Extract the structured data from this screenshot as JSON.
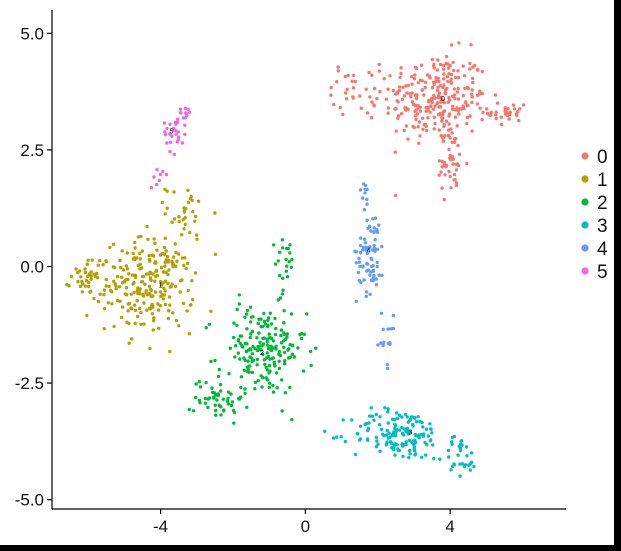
{
  "chart_data": {
    "type": "scatter",
    "title": "",
    "xlabel": "",
    "ylabel": "",
    "xlim": [
      -7.0,
      7.2
    ],
    "ylim": [
      -5.2,
      5.5
    ],
    "xticks": [
      -4,
      0,
      4
    ],
    "xtick_labels": [
      "-4",
      "0",
      "4"
    ],
    "yticks": [
      5.0,
      2.5,
      0.0,
      -2.5,
      -5.0
    ],
    "ytick_labels": [
      "5.0",
      "2.5",
      "0.0",
      "-2.5",
      "-5.0"
    ],
    "grid": false,
    "legend_position": "right",
    "series": [
      {
        "name": "0",
        "color": "#F8766D",
        "center": [
          3.6,
          3.6
        ],
        "label_pos": [
          3.8,
          3.55
        ],
        "label": "0",
        "blobs": [
          [
            3.6,
            3.6,
            1.3,
            0.9,
            260
          ],
          [
            5.6,
            3.3,
            0.5,
            0.3,
            30
          ],
          [
            4.0,
            2.2,
            0.4,
            0.6,
            40
          ],
          [
            1.4,
            3.8,
            0.6,
            0.5,
            30
          ]
        ]
      },
      {
        "name": "1",
        "color": "#B79F00",
        "center": [
          -4.5,
          -0.5
        ],
        "label_pos": [
          -4.0,
          -0.45
        ],
        "label": "1",
        "blobs": [
          [
            -4.3,
            -0.4,
            1.1,
            0.9,
            230
          ],
          [
            -5.9,
            -0.2,
            0.5,
            0.4,
            45
          ],
          [
            -3.3,
            1.2,
            0.5,
            0.5,
            30
          ]
        ]
      },
      {
        "name": "2",
        "color": "#00BA38",
        "center": [
          -1.4,
          -2.2
        ],
        "label_pos": [
          -1.2,
          -1.9
        ],
        "label": "2",
        "blobs": [
          [
            -1.2,
            -1.8,
            1.1,
            0.9,
            190
          ],
          [
            -2.4,
            -2.8,
            0.6,
            0.5,
            50
          ],
          [
            -0.5,
            0.1,
            0.3,
            0.5,
            20
          ]
        ]
      },
      {
        "name": "3",
        "color": "#00BFC4",
        "center": [
          2.5,
          -3.7
        ],
        "label_pos": [
          2.9,
          -3.6
        ],
        "label": "3",
        "blobs": [
          [
            2.6,
            -3.6,
            1.2,
            0.5,
            150
          ],
          [
            4.3,
            -4.1,
            0.4,
            0.4,
            30
          ]
        ]
      },
      {
        "name": "4",
        "color": "#619CFF",
        "center": [
          1.8,
          0.0
        ],
        "label_pos": [
          1.75,
          0.3
        ],
        "label": "4",
        "blobs": [
          [
            1.8,
            0.3,
            0.35,
            0.8,
            70
          ],
          [
            2.2,
            -1.6,
            0.3,
            0.5,
            15
          ],
          [
            1.6,
            1.6,
            0.2,
            0.3,
            10
          ]
        ]
      },
      {
        "name": "5",
        "color": "#F564E3",
        "center": [
          -3.6,
          2.8
        ],
        "label_pos": [
          -3.7,
          2.85
        ],
        "label": "5",
        "blobs": [
          [
            -3.6,
            2.9,
            0.3,
            0.4,
            30
          ],
          [
            -3.3,
            3.3,
            0.15,
            0.1,
            10
          ],
          [
            -4.1,
            1.9,
            0.15,
            0.3,
            8
          ]
        ]
      }
    ]
  },
  "legend": {
    "items": [
      {
        "label": "0",
        "color": "#F8766D"
      },
      {
        "label": "1",
        "color": "#B79F00"
      },
      {
        "label": "2",
        "color": "#00BA38"
      },
      {
        "label": "3",
        "color": "#00BFC4"
      },
      {
        "label": "4",
        "color": "#619CFF"
      },
      {
        "label": "5",
        "color": "#F564E3"
      }
    ]
  }
}
